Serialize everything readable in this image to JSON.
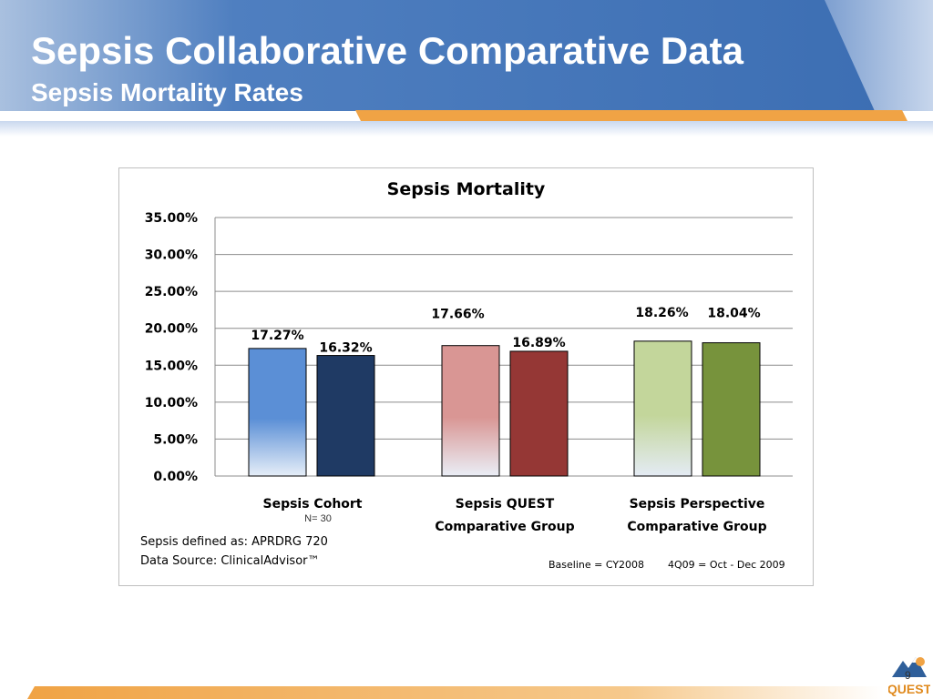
{
  "slide": {
    "title": "Sepsis Collaborative Comparative Data",
    "subtitle": "Sepsis Mortality Rates",
    "page_number": "9",
    "logo_text": "QUEST"
  },
  "colors": {
    "header_blue": "#3d6fb3",
    "accent_orange": "#f0a345",
    "cohort_current": "#1f3a64",
    "cohort_baseline": "#5b8fd6",
    "quest_current": "#953735",
    "quest_baseline": "#d99694",
    "perspective_current": "#77933c",
    "perspective_baseline": "#c3d69b"
  },
  "chart_data": {
    "type": "bar",
    "title": "Sepsis Mortality",
    "categories": [
      "Sepsis Cohort",
      "Sepsis QUEST Comparative Group",
      "Sepsis Perspective Comparative Group"
    ],
    "category_lines": [
      [
        "Sepsis Cohort"
      ],
      [
        "Sepsis QUEST",
        "Comparative Group"
      ],
      [
        "Sepsis Perspective",
        "Comparative Group"
      ]
    ],
    "category_note": "N= 30",
    "series": [
      {
        "values": [
          17.27,
          17.66,
          18.26
        ]
      },
      {
        "values": [
          16.32,
          16.89,
          18.04
        ]
      }
    ],
    "value_labels": [
      [
        "17.27%",
        "16.32%"
      ],
      [
        "17.66%",
        "16.89%"
      ],
      [
        "18.26%",
        "18.04%"
      ]
    ],
    "yticks": [
      "0.00%",
      "5.00%",
      "10.00%",
      "15.00%",
      "20.00%",
      "25.00%",
      "30.00%",
      "35.00%"
    ],
    "ylim": [
      0,
      35
    ],
    "grid": true,
    "notes": {
      "definition": "Sepsis defined as: APRDRG 720",
      "source": "Data Source:  ClinicalAdvisor™",
      "baseline": "Baseline = CY2008",
      "period": "4Q09 = Oct - Dec 2009"
    }
  }
}
